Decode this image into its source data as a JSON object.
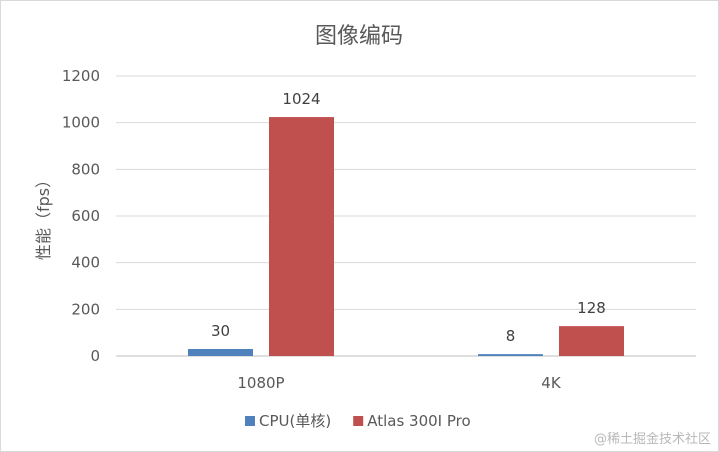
{
  "chart_data": {
    "type": "bar",
    "title": "图像编码",
    "ylabel": "性能（fps）",
    "xlabel": "",
    "categories": [
      "1080P",
      "4K"
    ],
    "series": [
      {
        "name": "CPU(单核)",
        "values": [
          30,
          8
        ],
        "color": "#4f81bd"
      },
      {
        "name": "Atlas 300I Pro",
        "values": [
          1024,
          128
        ],
        "color": "#c0504d"
      }
    ],
    "ylim": [
      0,
      1200
    ],
    "yticks": [
      0,
      200,
      400,
      600,
      800,
      1000,
      1200
    ],
    "grid": true,
    "legend_position": "bottom"
  },
  "watermark": "@稀土掘金技术社区"
}
